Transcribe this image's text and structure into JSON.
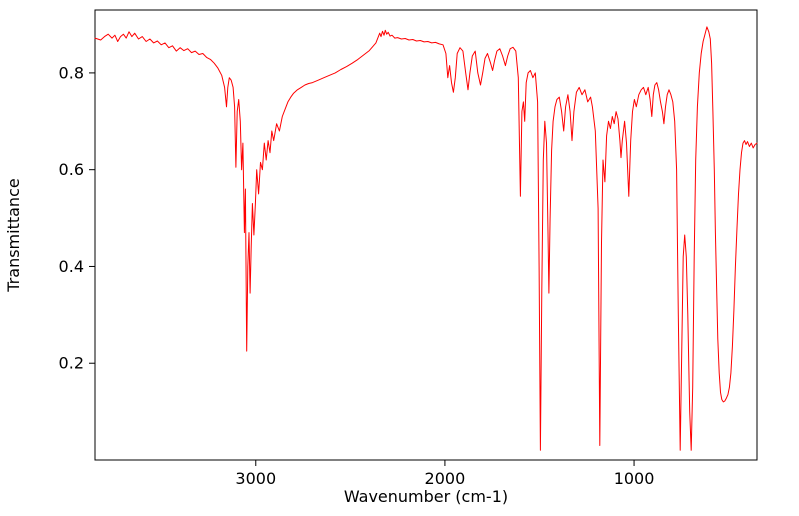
{
  "figure": {
    "background": "#ffffff",
    "frame_color": "#000000"
  },
  "chart_data": {
    "type": "line",
    "title": "",
    "xlabel": "Wavenumber (cm-1)",
    "ylabel": "Transmittance",
    "x_ticks": [
      3000,
      2000,
      1000
    ],
    "y_ticks": [
      0.2,
      0.4,
      0.6,
      0.8
    ],
    "xlim": [
      3850,
      350
    ],
    "ylim": [
      0.0,
      0.93
    ],
    "x_axis_reversed": true,
    "grid": false,
    "legend": "none",
    "line_color": "#ff0000",
    "line_width": 1,
    "series": [
      {
        "points": [
          [
            3850,
            0.872
          ],
          [
            3820,
            0.868
          ],
          [
            3800,
            0.875
          ],
          [
            3780,
            0.88
          ],
          [
            3760,
            0.872
          ],
          [
            3745,
            0.878
          ],
          [
            3730,
            0.865
          ],
          [
            3715,
            0.875
          ],
          [
            3700,
            0.88
          ],
          [
            3685,
            0.872
          ],
          [
            3670,
            0.885
          ],
          [
            3655,
            0.875
          ],
          [
            3640,
            0.882
          ],
          [
            3620,
            0.87
          ],
          [
            3600,
            0.875
          ],
          [
            3580,
            0.865
          ],
          [
            3560,
            0.87
          ],
          [
            3540,
            0.862
          ],
          [
            3520,
            0.866
          ],
          [
            3500,
            0.858
          ],
          [
            3480,
            0.862
          ],
          [
            3460,
            0.852
          ],
          [
            3440,
            0.856
          ],
          [
            3420,
            0.845
          ],
          [
            3400,
            0.852
          ],
          [
            3380,
            0.846
          ],
          [
            3360,
            0.85
          ],
          [
            3340,
            0.842
          ],
          [
            3320,
            0.845
          ],
          [
            3300,
            0.838
          ],
          [
            3280,
            0.84
          ],
          [
            3260,
            0.832
          ],
          [
            3240,
            0.828
          ],
          [
            3220,
            0.82
          ],
          [
            3200,
            0.81
          ],
          [
            3180,
            0.795
          ],
          [
            3165,
            0.77
          ],
          [
            3155,
            0.73
          ],
          [
            3148,
            0.77
          ],
          [
            3140,
            0.79
          ],
          [
            3130,
            0.785
          ],
          [
            3120,
            0.77
          ],
          [
            3112,
            0.73
          ],
          [
            3105,
            0.605
          ],
          [
            3098,
            0.72
          ],
          [
            3090,
            0.745
          ],
          [
            3082,
            0.7
          ],
          [
            3075,
            0.6
          ],
          [
            3068,
            0.655
          ],
          [
            3060,
            0.47
          ],
          [
            3055,
            0.56
          ],
          [
            3048,
            0.225
          ],
          [
            3042,
            0.4
          ],
          [
            3036,
            0.47
          ],
          [
            3030,
            0.345
          ],
          [
            3024,
            0.44
          ],
          [
            3018,
            0.53
          ],
          [
            3010,
            0.465
          ],
          [
            3002,
            0.53
          ],
          [
            2995,
            0.6
          ],
          [
            2985,
            0.55
          ],
          [
            2975,
            0.615
          ],
          [
            2965,
            0.6
          ],
          [
            2955,
            0.655
          ],
          [
            2945,
            0.62
          ],
          [
            2935,
            0.66
          ],
          [
            2925,
            0.635
          ],
          [
            2915,
            0.68
          ],
          [
            2905,
            0.66
          ],
          [
            2890,
            0.695
          ],
          [
            2875,
            0.68
          ],
          [
            2860,
            0.71
          ],
          [
            2845,
            0.725
          ],
          [
            2830,
            0.74
          ],
          [
            2815,
            0.75
          ],
          [
            2800,
            0.758
          ],
          [
            2780,
            0.765
          ],
          [
            2760,
            0.77
          ],
          [
            2740,
            0.775
          ],
          [
            2720,
            0.778
          ],
          [
            2700,
            0.78
          ],
          [
            2670,
            0.785
          ],
          [
            2640,
            0.79
          ],
          [
            2610,
            0.795
          ],
          [
            2580,
            0.8
          ],
          [
            2550,
            0.807
          ],
          [
            2520,
            0.813
          ],
          [
            2490,
            0.82
          ],
          [
            2460,
            0.828
          ],
          [
            2430,
            0.837
          ],
          [
            2400,
            0.846
          ],
          [
            2380,
            0.855
          ],
          [
            2365,
            0.862
          ],
          [
            2355,
            0.872
          ],
          [
            2345,
            0.882
          ],
          [
            2338,
            0.875
          ],
          [
            2330,
            0.886
          ],
          [
            2322,
            0.878
          ],
          [
            2315,
            0.888
          ],
          [
            2308,
            0.88
          ],
          [
            2300,
            0.884
          ],
          [
            2290,
            0.876
          ],
          [
            2280,
            0.878
          ],
          [
            2265,
            0.872
          ],
          [
            2250,
            0.873
          ],
          [
            2230,
            0.87
          ],
          [
            2210,
            0.871
          ],
          [
            2190,
            0.868
          ],
          [
            2170,
            0.869
          ],
          [
            2150,
            0.866
          ],
          [
            2130,
            0.867
          ],
          [
            2110,
            0.864
          ],
          [
            2090,
            0.865
          ],
          [
            2070,
            0.862
          ],
          [
            2050,
            0.863
          ],
          [
            2030,
            0.86
          ],
          [
            2010,
            0.858
          ],
          [
            1995,
            0.84
          ],
          [
            1985,
            0.79
          ],
          [
            1975,
            0.815
          ],
          [
            1965,
            0.78
          ],
          [
            1955,
            0.76
          ],
          [
            1945,
            0.79
          ],
          [
            1935,
            0.84
          ],
          [
            1920,
            0.852
          ],
          [
            1905,
            0.845
          ],
          [
            1890,
            0.8
          ],
          [
            1878,
            0.765
          ],
          [
            1868,
            0.8
          ],
          [
            1855,
            0.835
          ],
          [
            1840,
            0.845
          ],
          [
            1826,
            0.8
          ],
          [
            1812,
            0.775
          ],
          [
            1800,
            0.8
          ],
          [
            1788,
            0.83
          ],
          [
            1775,
            0.84
          ],
          [
            1760,
            0.822
          ],
          [
            1748,
            0.805
          ],
          [
            1738,
            0.825
          ],
          [
            1725,
            0.845
          ],
          [
            1710,
            0.85
          ],
          [
            1695,
            0.835
          ],
          [
            1680,
            0.815
          ],
          [
            1668,
            0.835
          ],
          [
            1655,
            0.85
          ],
          [
            1640,
            0.853
          ],
          [
            1625,
            0.845
          ],
          [
            1612,
            0.79
          ],
          [
            1601,
            0.545
          ],
          [
            1593,
            0.72
          ],
          [
            1585,
            0.74
          ],
          [
            1578,
            0.7
          ],
          [
            1570,
            0.78
          ],
          [
            1560,
            0.8
          ],
          [
            1548,
            0.805
          ],
          [
            1535,
            0.79
          ],
          [
            1522,
            0.8
          ],
          [
            1510,
            0.74
          ],
          [
            1502,
            0.4
          ],
          [
            1495,
            0.02
          ],
          [
            1488,
            0.35
          ],
          [
            1480,
            0.62
          ],
          [
            1472,
            0.7
          ],
          [
            1463,
            0.655
          ],
          [
            1455,
            0.47
          ],
          [
            1450,
            0.345
          ],
          [
            1444,
            0.5
          ],
          [
            1436,
            0.64
          ],
          [
            1428,
            0.7
          ],
          [
            1418,
            0.73
          ],
          [
            1408,
            0.745
          ],
          [
            1395,
            0.75
          ],
          [
            1383,
            0.72
          ],
          [
            1372,
            0.68
          ],
          [
            1362,
            0.73
          ],
          [
            1350,
            0.755
          ],
          [
            1338,
            0.72
          ],
          [
            1328,
            0.66
          ],
          [
            1318,
            0.72
          ],
          [
            1305,
            0.76
          ],
          [
            1290,
            0.77
          ],
          [
            1275,
            0.755
          ],
          [
            1260,
            0.765
          ],
          [
            1245,
            0.74
          ],
          [
            1230,
            0.75
          ],
          [
            1220,
            0.73
          ],
          [
            1205,
            0.68
          ],
          [
            1190,
            0.52
          ],
          [
            1181,
            0.03
          ],
          [
            1172,
            0.45
          ],
          [
            1164,
            0.62
          ],
          [
            1154,
            0.575
          ],
          [
            1145,
            0.67
          ],
          [
            1135,
            0.7
          ],
          [
            1125,
            0.685
          ],
          [
            1115,
            0.71
          ],
          [
            1105,
            0.695
          ],
          [
            1095,
            0.72
          ],
          [
            1085,
            0.705
          ],
          [
            1075,
            0.66
          ],
          [
            1069,
            0.625
          ],
          [
            1062,
            0.66
          ],
          [
            1050,
            0.7
          ],
          [
            1040,
            0.655
          ],
          [
            1028,
            0.545
          ],
          [
            1018,
            0.66
          ],
          [
            1008,
            0.72
          ],
          [
            998,
            0.745
          ],
          [
            988,
            0.73
          ],
          [
            975,
            0.755
          ],
          [
            962,
            0.765
          ],
          [
            950,
            0.77
          ],
          [
            938,
            0.755
          ],
          [
            925,
            0.77
          ],
          [
            915,
            0.745
          ],
          [
            906,
            0.71
          ],
          [
            898,
            0.755
          ],
          [
            890,
            0.775
          ],
          [
            880,
            0.78
          ],
          [
            870,
            0.765
          ],
          [
            860,
            0.74
          ],
          [
            850,
            0.72
          ],
          [
            842,
            0.695
          ],
          [
            834,
            0.73
          ],
          [
            825,
            0.755
          ],
          [
            815,
            0.765
          ],
          [
            805,
            0.755
          ],
          [
            795,
            0.74
          ],
          [
            785,
            0.7
          ],
          [
            775,
            0.6
          ],
          [
            766,
            0.3
          ],
          [
            756,
            0.02
          ],
          [
            748,
            0.22
          ],
          [
            740,
            0.42
          ],
          [
            732,
            0.465
          ],
          [
            724,
            0.42
          ],
          [
            716,
            0.3
          ],
          [
            706,
            0.1
          ],
          [
            698,
            0.02
          ],
          [
            690,
            0.15
          ],
          [
            682,
            0.42
          ],
          [
            674,
            0.62
          ],
          [
            665,
            0.73
          ],
          [
            655,
            0.8
          ],
          [
            645,
            0.84
          ],
          [
            635,
            0.865
          ],
          [
            625,
            0.88
          ],
          [
            615,
            0.895
          ],
          [
            605,
            0.885
          ],
          [
            597,
            0.87
          ],
          [
            590,
            0.82
          ],
          [
            583,
            0.72
          ],
          [
            576,
            0.6
          ],
          [
            570,
            0.47
          ],
          [
            563,
            0.35
          ],
          [
            557,
            0.25
          ],
          [
            550,
            0.18
          ],
          [
            543,
            0.14
          ],
          [
            536,
            0.125
          ],
          [
            528,
            0.12
          ],
          [
            520,
            0.122
          ],
          [
            512,
            0.128
          ],
          [
            504,
            0.135
          ],
          [
            496,
            0.15
          ],
          [
            488,
            0.18
          ],
          [
            480,
            0.235
          ],
          [
            472,
            0.31
          ],
          [
            464,
            0.4
          ],
          [
            456,
            0.48
          ],
          [
            448,
            0.55
          ],
          [
            440,
            0.6
          ],
          [
            432,
            0.635
          ],
          [
            424,
            0.655
          ],
          [
            416,
            0.66
          ],
          [
            408,
            0.652
          ],
          [
            400,
            0.658
          ],
          [
            390,
            0.648
          ],
          [
            380,
            0.655
          ],
          [
            370,
            0.645
          ],
          [
            360,
            0.652
          ],
          [
            350,
            0.655
          ]
        ]
      }
    ]
  }
}
